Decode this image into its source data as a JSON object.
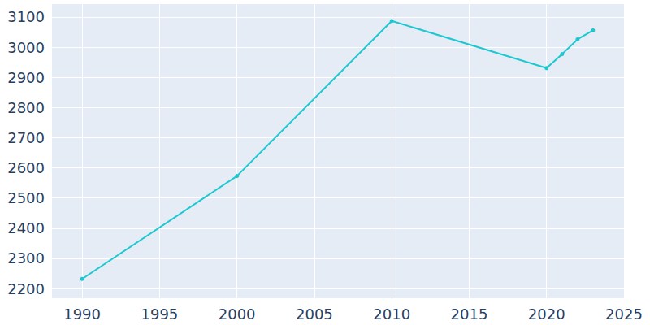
{
  "chart_data": {
    "type": "line",
    "x": [
      1990,
      2000,
      2010,
      2020,
      2021,
      2022,
      2023
    ],
    "values": [
      2232,
      2573,
      3087,
      2931,
      2977,
      3026,
      3056
    ],
    "color": "#1cc8cf",
    "marker": "circle",
    "xlim": [
      1988,
      2025
    ],
    "xticks": [
      1990,
      1995,
      2000,
      2005,
      2010,
      2015,
      2020,
      2025
    ],
    "ylim": [
      2168,
      3143
    ],
    "yticks": [
      2200,
      2300,
      2400,
      2500,
      2600,
      2700,
      2800,
      2900,
      3000,
      3100
    ],
    "grid": true
  }
}
